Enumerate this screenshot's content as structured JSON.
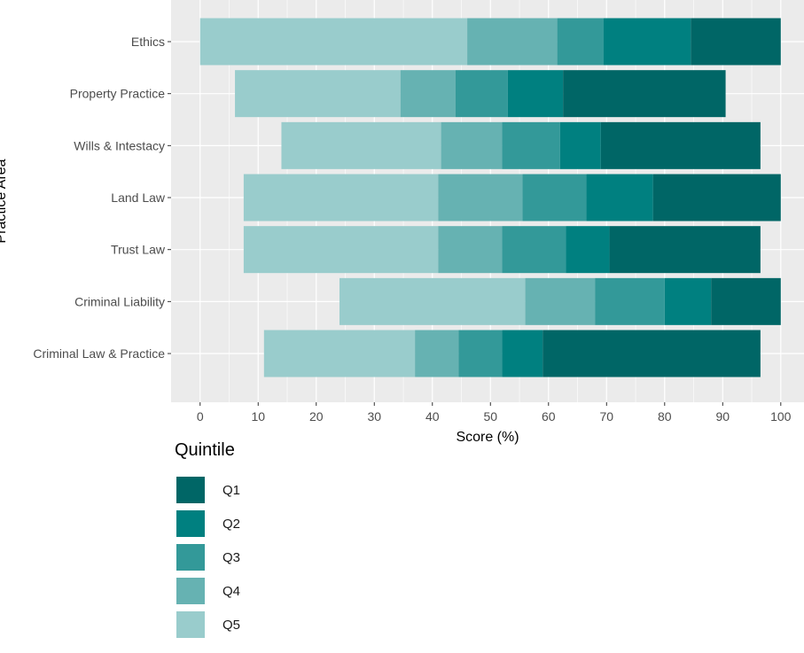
{
  "chart_data": {
    "type": "bar",
    "orientation": "horizontal",
    "stacked": true,
    "xlabel": "Score (%)",
    "ylabel": "Practice Area",
    "xlim": [
      -5,
      104
    ],
    "xticks": [
      0,
      10,
      20,
      30,
      40,
      50,
      60,
      70,
      80,
      90,
      100
    ],
    "grid": true,
    "legend_position": "bottom-left",
    "legend_title": "Quintile",
    "categories": [
      "Ethics",
      "Property Practice",
      "Wills & Intestacy",
      "Land Law",
      "Trust Law",
      "Criminal Liability",
      "Criminal Law & Practice"
    ],
    "series": [
      {
        "name": "Q5",
        "color": "#99cccc",
        "ranges": [
          [
            0,
            46
          ],
          [
            6,
            34.5
          ],
          [
            14,
            41.5
          ],
          [
            7.5,
            41
          ],
          [
            7.5,
            41
          ],
          [
            24,
            56
          ],
          [
            11,
            37
          ]
        ]
      },
      {
        "name": "Q4",
        "color": "#66b2b2",
        "ranges": [
          [
            46,
            61.5
          ],
          [
            34.5,
            44
          ],
          [
            41.5,
            52
          ],
          [
            41,
            55.5
          ],
          [
            41,
            52
          ],
          [
            56,
            68
          ],
          [
            37,
            44.5
          ]
        ]
      },
      {
        "name": "Q3",
        "color": "#339999",
        "ranges": [
          [
            61.5,
            69.5
          ],
          [
            44,
            53
          ],
          [
            52,
            62
          ],
          [
            55.5,
            66.5
          ],
          [
            52,
            63
          ],
          [
            68,
            80
          ],
          [
            44.5,
            52
          ]
        ]
      },
      {
        "name": "Q2",
        "color": "#008080",
        "ranges": [
          [
            69.5,
            84.5
          ],
          [
            53,
            62.5
          ],
          [
            62,
            69
          ],
          [
            66.5,
            78
          ],
          [
            63,
            70.5
          ],
          [
            80,
            88
          ],
          [
            52,
            59
          ]
        ]
      },
      {
        "name": "Q1",
        "color": "#006666",
        "ranges": [
          [
            84.5,
            100
          ],
          [
            62.5,
            90.5
          ],
          [
            69,
            96.5
          ],
          [
            78,
            100
          ],
          [
            70.5,
            96.5
          ],
          [
            88,
            100
          ],
          [
            59,
            96.5
          ]
        ]
      }
    ]
  },
  "legend": {
    "title": "Quintile",
    "items": [
      {
        "label": "Q1",
        "color": "#006666"
      },
      {
        "label": "Q2",
        "color": "#008080"
      },
      {
        "label": "Q3",
        "color": "#339999"
      },
      {
        "label": "Q4",
        "color": "#66b2b2"
      },
      {
        "label": "Q5",
        "color": "#99cccc"
      }
    ]
  }
}
